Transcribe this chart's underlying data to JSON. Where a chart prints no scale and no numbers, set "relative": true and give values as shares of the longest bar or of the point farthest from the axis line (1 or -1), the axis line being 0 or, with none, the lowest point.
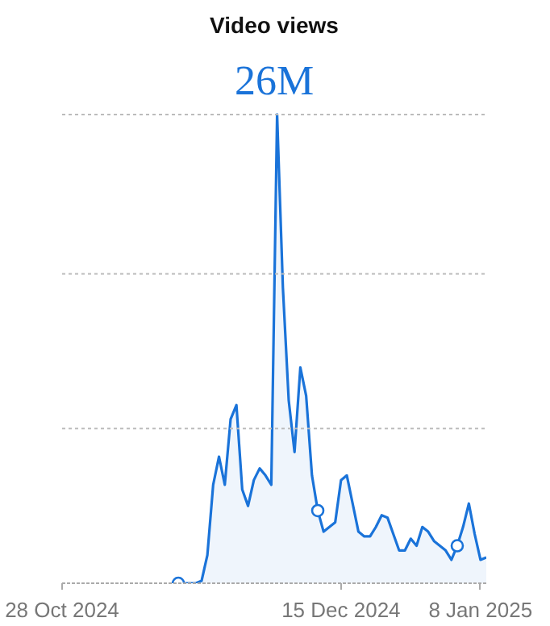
{
  "chart_data": {
    "type": "area",
    "title": "Video views",
    "subtitle": "26M",
    "relative": true,
    "xlim": [
      "2024-10-28",
      "2025-01-09"
    ],
    "xticks": [
      {
        "value": "2024-10-28",
        "label": "28 Oct 2024"
      },
      {
        "value": "2024-12-15",
        "label": "15 Dec 2024"
      },
      {
        "value": "2025-01-08",
        "label": "8 Jan 2025"
      }
    ],
    "ref_lines": [
      {
        "axis": "y",
        "value": 0.33,
        "color": "#bbbbbb",
        "line_style": "dotted"
      },
      {
        "axis": "y",
        "value": 0.66,
        "color": "#bbbbbb",
        "line_style": "dotted"
      },
      {
        "axis": "y",
        "value": 1,
        "color": "#bbbbbb",
        "line_style": "dotted"
      }
    ],
    "series": [
      {
        "color": "#1a73d9",
        "x": [
          "2024-11-17",
          "2024-11-18",
          "2024-11-19",
          "2024-11-20",
          "2024-11-21",
          "2024-11-22",
          "2024-11-23",
          "2024-11-24",
          "2024-11-25",
          "2024-11-26",
          "2024-11-27",
          "2024-11-28",
          "2024-11-29",
          "2024-11-30",
          "2024-12-01",
          "2024-12-02",
          "2024-12-03",
          "2024-12-04",
          "2024-12-05",
          "2024-12-06",
          "2024-12-07",
          "2024-12-08",
          "2024-12-09",
          "2024-12-10",
          "2024-12-11",
          "2024-12-12",
          "2024-12-13",
          "2024-12-14",
          "2024-12-15",
          "2024-12-16",
          "2024-12-17",
          "2024-12-18",
          "2024-12-19",
          "2024-12-20",
          "2024-12-21",
          "2024-12-22",
          "2024-12-23",
          "2024-12-24",
          "2024-12-25",
          "2024-12-26",
          "2024-12-27",
          "2024-12-28",
          "2024-12-29",
          "2024-12-30",
          "2024-12-31",
          "2025-01-01",
          "2025-01-02",
          "2025-01-03",
          "2025-01-04",
          "2025-01-05",
          "2025-01-06",
          "2025-01-07",
          "2025-01-08",
          "2025-01-09"
        ],
        "values": [
          0,
          0,
          0,
          0,
          0.005,
          0.06,
          0.21,
          0.27,
          0.21,
          0.35,
          0.38,
          0.2,
          0.165,
          0.22,
          0.245,
          0.23,
          0.21,
          1.0,
          0.63,
          0.39,
          0.28,
          0.46,
          0.4,
          0.23,
          0.155,
          0.11,
          0.12,
          0.13,
          0.22,
          0.23,
          0.17,
          0.11,
          0.1,
          0.1,
          0.12,
          0.145,
          0.14,
          0.105,
          0.07,
          0.07,
          0.095,
          0.08,
          0.12,
          0.11,
          0.09,
          0.08,
          0.07,
          0.05,
          0.08,
          0.12,
          0.17,
          0.105,
          0.05,
          0.055
        ]
      },
      {
        "type": "scatter",
        "marker": "circle",
        "color": "#1a73d9",
        "x": [
          "2024-11-17",
          "2024-12-11",
          "2025-01-04"
        ],
        "values": [
          0,
          0.155,
          0.08
        ]
      }
    ]
  }
}
